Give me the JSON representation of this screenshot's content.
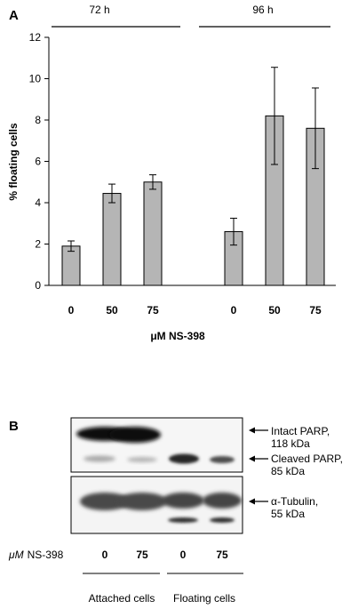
{
  "panel_a": {
    "label": "A",
    "group_labels": [
      "72 h",
      "96 h"
    ]
  },
  "panel_b": {
    "label": "B",
    "blot_labels": {
      "intact_line1": "Intact PARP,",
      "intact_line2": "118 kDa",
      "cleaved_line1": "Cleaved PARP,",
      "cleaved_line2": "85 kDa",
      "tubulin_line1": "α-Tubulin,",
      "tubulin_line2": "55 kDa"
    },
    "dose_label_unit": "μM",
    "dose_label_drug": "NS-398",
    "doses": [
      "0",
      "75",
      "0",
      "75"
    ],
    "group_labels": [
      "Attached cells",
      "Floating cells"
    ]
  },
  "chart_data": {
    "type": "bar",
    "title": "",
    "ylabel": "% floating cells",
    "xlabel": "μM NS-398",
    "ylim": [
      0,
      12
    ],
    "yticks": [
      0,
      2,
      4,
      6,
      8,
      10,
      12
    ],
    "groups": [
      "72 h",
      "96 h"
    ],
    "categories": [
      "0",
      "50",
      "75",
      "0",
      "50",
      "75"
    ],
    "values": [
      1.9,
      4.45,
      5.0,
      2.6,
      8.2,
      7.6
    ],
    "errors": [
      0.25,
      0.45,
      0.35,
      0.65,
      2.35,
      1.95
    ],
    "bar_color": "#b5b5b5",
    "grid": false
  }
}
